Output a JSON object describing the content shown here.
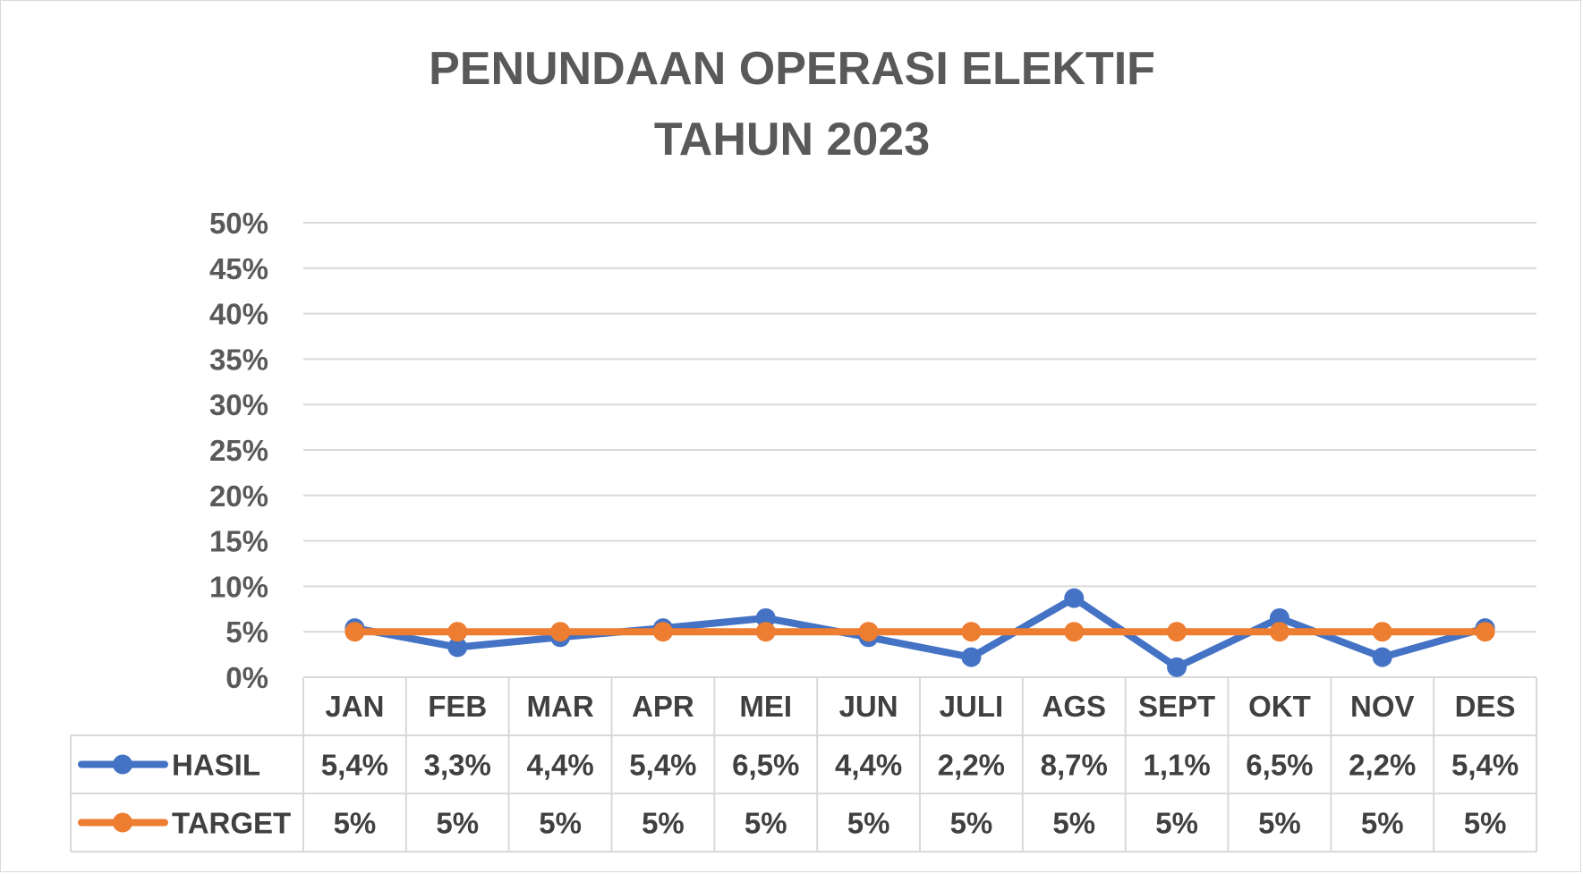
{
  "chart_data": {
    "type": "line",
    "title_lines": [
      "PENUNDAAN OPERASI ELEKTIF",
      "TAHUN 2023"
    ],
    "categories": [
      "JAN",
      "FEB",
      "MAR",
      "APR",
      "MEI",
      "JUN",
      "JULI",
      "AGS",
      "SEPT",
      "OKT",
      "NOV",
      "DES"
    ],
    "yticks": [
      "0%",
      "5%",
      "10%",
      "15%",
      "20%",
      "25%",
      "30%",
      "35%",
      "40%",
      "45%",
      "50%"
    ],
    "ylim": [
      0,
      50
    ],
    "grid": true,
    "legend": "data-table",
    "series": [
      {
        "name": "HASIL",
        "color": "#4472c4",
        "values": [
          5.4,
          3.3,
          4.4,
          5.4,
          6.5,
          4.4,
          2.2,
          8.7,
          1.1,
          6.5,
          2.2,
          5.4
        ],
        "labels": [
          "5,4%",
          "3,3%",
          "4,4%",
          "5,4%",
          "6,5%",
          "4,4%",
          "2,2%",
          "8,7%",
          "1,1%",
          "6,5%",
          "2,2%",
          "5,4%"
        ]
      },
      {
        "name": "TARGET",
        "color": "#ed7d31",
        "values": [
          5,
          5,
          5,
          5,
          5,
          5,
          5,
          5,
          5,
          5,
          5,
          5
        ],
        "labels": [
          "5%",
          "5%",
          "5%",
          "5%",
          "5%",
          "5%",
          "5%",
          "5%",
          "5%",
          "5%",
          "5%",
          "5%"
        ]
      }
    ]
  }
}
